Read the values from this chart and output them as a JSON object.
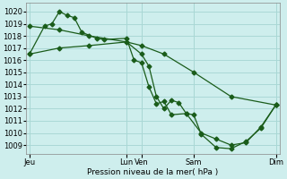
{
  "bg_color": "#ceeeed",
  "grid_color": "#aad8d6",
  "line_color": "#1a5c1a",
  "ylim": [
    1008.3,
    1020.7
  ],
  "yticks": [
    1009,
    1010,
    1011,
    1012,
    1013,
    1014,
    1015,
    1016,
    1017,
    1018,
    1019,
    1020
  ],
  "xlabel": "Pression niveau de la mer( hPa )",
  "day_labels": [
    "Jeu",
    "",
    "Lun",
    "Ven",
    "",
    "Sam",
    "",
    "Dim"
  ],
  "xtick_show": [
    0,
    13,
    15,
    22,
    33
  ],
  "xtick_names": [
    "Jeu",
    "Lun",
    "Ven",
    "Sam",
    "Dim"
  ],
  "xlim": [
    -0.5,
    33.5
  ],
  "vlines": [
    0,
    13,
    15,
    22,
    33
  ],
  "line1_x": [
    0,
    2,
    3,
    4,
    5,
    6,
    7,
    9,
    10,
    13,
    14,
    15,
    16,
    17,
    18,
    19,
    21,
    23,
    25,
    27,
    29,
    31,
    33
  ],
  "line1_y": [
    1016.5,
    1018.8,
    1019.0,
    1020.0,
    1019.7,
    1019.5,
    1018.3,
    1017.8,
    1017.7,
    1017.8,
    1016.0,
    1015.8,
    1013.8,
    1012.4,
    1012.6,
    1011.5,
    1011.6,
    1010.0,
    1009.5,
    1009.0,
    1009.2,
    1010.5,
    1012.3
  ],
  "line2_x": [
    0,
    4,
    8,
    13,
    15,
    18,
    22,
    27,
    33
  ],
  "line2_y": [
    1018.8,
    1018.5,
    1018.0,
    1017.5,
    1017.2,
    1016.5,
    1015.0,
    1013.0,
    1012.3
  ],
  "line3_x": [
    0,
    4,
    8,
    13,
    15,
    16,
    17,
    18,
    19,
    20,
    21,
    22,
    23,
    25,
    27,
    29,
    31,
    33
  ],
  "line3_y": [
    1016.5,
    1017.0,
    1017.2,
    1017.5,
    1016.5,
    1015.5,
    1013.0,
    1012.0,
    1012.7,
    1012.5,
    1011.6,
    1011.5,
    1009.9,
    1008.8,
    1008.7,
    1009.3,
    1010.4,
    1012.3
  ]
}
